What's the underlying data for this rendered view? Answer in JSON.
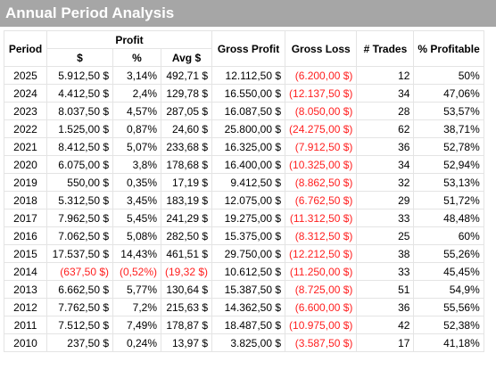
{
  "title": "Annual Period Analysis",
  "headers": {
    "period": "Period",
    "profit": "Profit",
    "dollar": "$",
    "percent": "%",
    "avg": "Avg $",
    "gross_profit": "Gross Profit",
    "gross_loss": "Gross Loss",
    "trades": "# Trades",
    "pct_profitable": "% Profitable"
  },
  "colors": {
    "title_bar": "#a6a6a6",
    "negative": "#ff1f1f"
  },
  "rows": [
    {
      "period": "2025",
      "dollar": "5.912,50 $",
      "percent": "3,14%",
      "avg": "492,71 $",
      "gross_profit": "12.112,50 $",
      "gross_loss": "(6.200,00 $)",
      "trades": "12",
      "pct_profitable": "50%",
      "negative": false
    },
    {
      "period": "2024",
      "dollar": "4.412,50 $",
      "percent": "2,4%",
      "avg": "129,78 $",
      "gross_profit": "16.550,00 $",
      "gross_loss": "(12.137,50 $)",
      "trades": "34",
      "pct_profitable": "47,06%",
      "negative": false
    },
    {
      "period": "2023",
      "dollar": "8.037,50 $",
      "percent": "4,57%",
      "avg": "287,05 $",
      "gross_profit": "16.087,50 $",
      "gross_loss": "(8.050,00 $)",
      "trades": "28",
      "pct_profitable": "53,57%",
      "negative": false
    },
    {
      "period": "2022",
      "dollar": "1.525,00 $",
      "percent": "0,87%",
      "avg": "24,60 $",
      "gross_profit": "25.800,00 $",
      "gross_loss": "(24.275,00 $)",
      "trades": "62",
      "pct_profitable": "38,71%",
      "negative": false
    },
    {
      "period": "2021",
      "dollar": "8.412,50 $",
      "percent": "5,07%",
      "avg": "233,68 $",
      "gross_profit": "16.325,00 $",
      "gross_loss": "(7.912,50 $)",
      "trades": "36",
      "pct_profitable": "52,78%",
      "negative": false
    },
    {
      "period": "2020",
      "dollar": "6.075,00 $",
      "percent": "3,8%",
      "avg": "178,68 $",
      "gross_profit": "16.400,00 $",
      "gross_loss": "(10.325,00 $)",
      "trades": "34",
      "pct_profitable": "52,94%",
      "negative": false
    },
    {
      "period": "2019",
      "dollar": "550,00 $",
      "percent": "0,35%",
      "avg": "17,19 $",
      "gross_profit": "9.412,50 $",
      "gross_loss": "(8.862,50 $)",
      "trades": "32",
      "pct_profitable": "53,13%",
      "negative": false
    },
    {
      "period": "2018",
      "dollar": "5.312,50 $",
      "percent": "3,45%",
      "avg": "183,19 $",
      "gross_profit": "12.075,00 $",
      "gross_loss": "(6.762,50 $)",
      "trades": "29",
      "pct_profitable": "51,72%",
      "negative": false
    },
    {
      "period": "2017",
      "dollar": "7.962,50 $",
      "percent": "5,45%",
      "avg": "241,29 $",
      "gross_profit": "19.275,00 $",
      "gross_loss": "(11.312,50 $)",
      "trades": "33",
      "pct_profitable": "48,48%",
      "negative": false
    },
    {
      "period": "2016",
      "dollar": "7.062,50 $",
      "percent": "5,08%",
      "avg": "282,50 $",
      "gross_profit": "15.375,00 $",
      "gross_loss": "(8.312,50 $)",
      "trades": "25",
      "pct_profitable": "60%",
      "negative": false
    },
    {
      "period": "2015",
      "dollar": "17.537,50 $",
      "percent": "14,43%",
      "avg": "461,51 $",
      "gross_profit": "29.750,00 $",
      "gross_loss": "(12.212,50 $)",
      "trades": "38",
      "pct_profitable": "55,26%",
      "negative": false
    },
    {
      "period": "2014",
      "dollar": "(637,50 $)",
      "percent": "(0,52%)",
      "avg": "(19,32 $)",
      "gross_profit": "10.612,50 $",
      "gross_loss": "(11.250,00 $)",
      "trades": "33",
      "pct_profitable": "45,45%",
      "negative": true
    },
    {
      "period": "2013",
      "dollar": "6.662,50 $",
      "percent": "5,77%",
      "avg": "130,64 $",
      "gross_profit": "15.387,50 $",
      "gross_loss": "(8.725,00 $)",
      "trades": "51",
      "pct_profitable": "54,9%",
      "negative": false
    },
    {
      "period": "2012",
      "dollar": "7.762,50 $",
      "percent": "7,2%",
      "avg": "215,63 $",
      "gross_profit": "14.362,50 $",
      "gross_loss": "(6.600,00 $)",
      "trades": "36",
      "pct_profitable": "55,56%",
      "negative": false
    },
    {
      "period": "2011",
      "dollar": "7.512,50 $",
      "percent": "7,49%",
      "avg": "178,87 $",
      "gross_profit": "18.487,50 $",
      "gross_loss": "(10.975,00 $)",
      "trades": "42",
      "pct_profitable": "52,38%",
      "negative": false
    },
    {
      "period": "2010",
      "dollar": "237,50 $",
      "percent": "0,24%",
      "avg": "13,97 $",
      "gross_profit": "3.825,00 $",
      "gross_loss": "(3.587,50 $)",
      "trades": "17",
      "pct_profitable": "41,18%",
      "negative": false
    }
  ]
}
